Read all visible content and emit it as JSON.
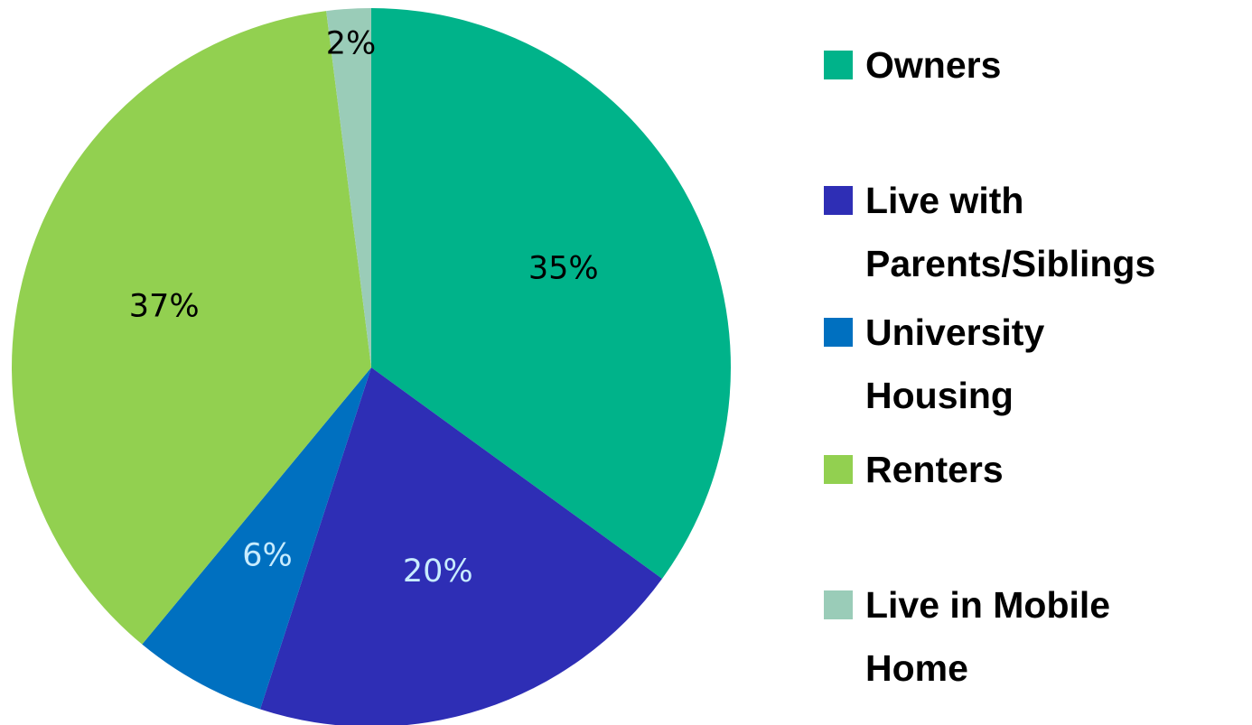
{
  "chart_data": {
    "type": "pie",
    "categories": [
      "Owners",
      "Live with Parents/Siblings",
      "University Housing",
      "Renters",
      "Live in Mobile Home"
    ],
    "values": [
      35,
      20,
      6,
      37,
      2
    ],
    "value_labels": [
      "35%",
      "20%",
      "6%",
      "37%",
      "2%"
    ],
    "colors": [
      "#00b38a",
      "#2e2eb5",
      "#0070c0",
      "#92d050",
      "#9accb8"
    ],
    "label_colors": [
      "#000000",
      "#c8ecff",
      "#c8ecff",
      "#000000",
      "#000000"
    ],
    "legend": "right"
  }
}
